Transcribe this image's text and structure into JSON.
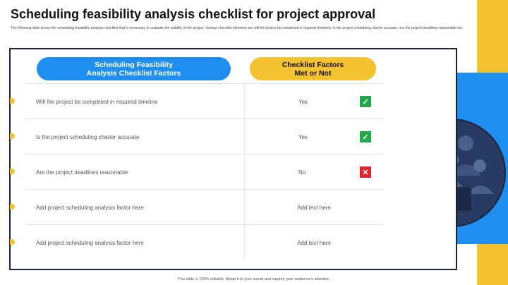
{
  "header": {
    "title": "Scheduling feasibility analysis checklist for project approval",
    "subtitle": "The following slide shows the scheduling feasibility analysis checklist that is necessary to evaluate the viability of the project. Various checklist elements are will the project be completed in required timelines, is the project scheduling charter accurate, are the project deadlines reasonable etc."
  },
  "table": {
    "headers": [
      "Scheduling Feasibility Analysis Checklist Factors",
      "Checklist Factors Met or Not"
    ],
    "rows": [
      [
        "Will the project be completed in required timeline",
        "Yes"
      ],
      [
        "Is the project scheduling charter accurate",
        "Yes"
      ],
      [
        "Are the project deadlines reasonable",
        "No"
      ],
      [
        "Add project scheduling analysis factor here",
        "Add text here"
      ],
      [
        "Add project scheduling analysis factor here",
        "Add text here"
      ]
    ]
  },
  "footer": "This slide is 100% editable. Adapt it to your needs and capture your audience's attention."
}
